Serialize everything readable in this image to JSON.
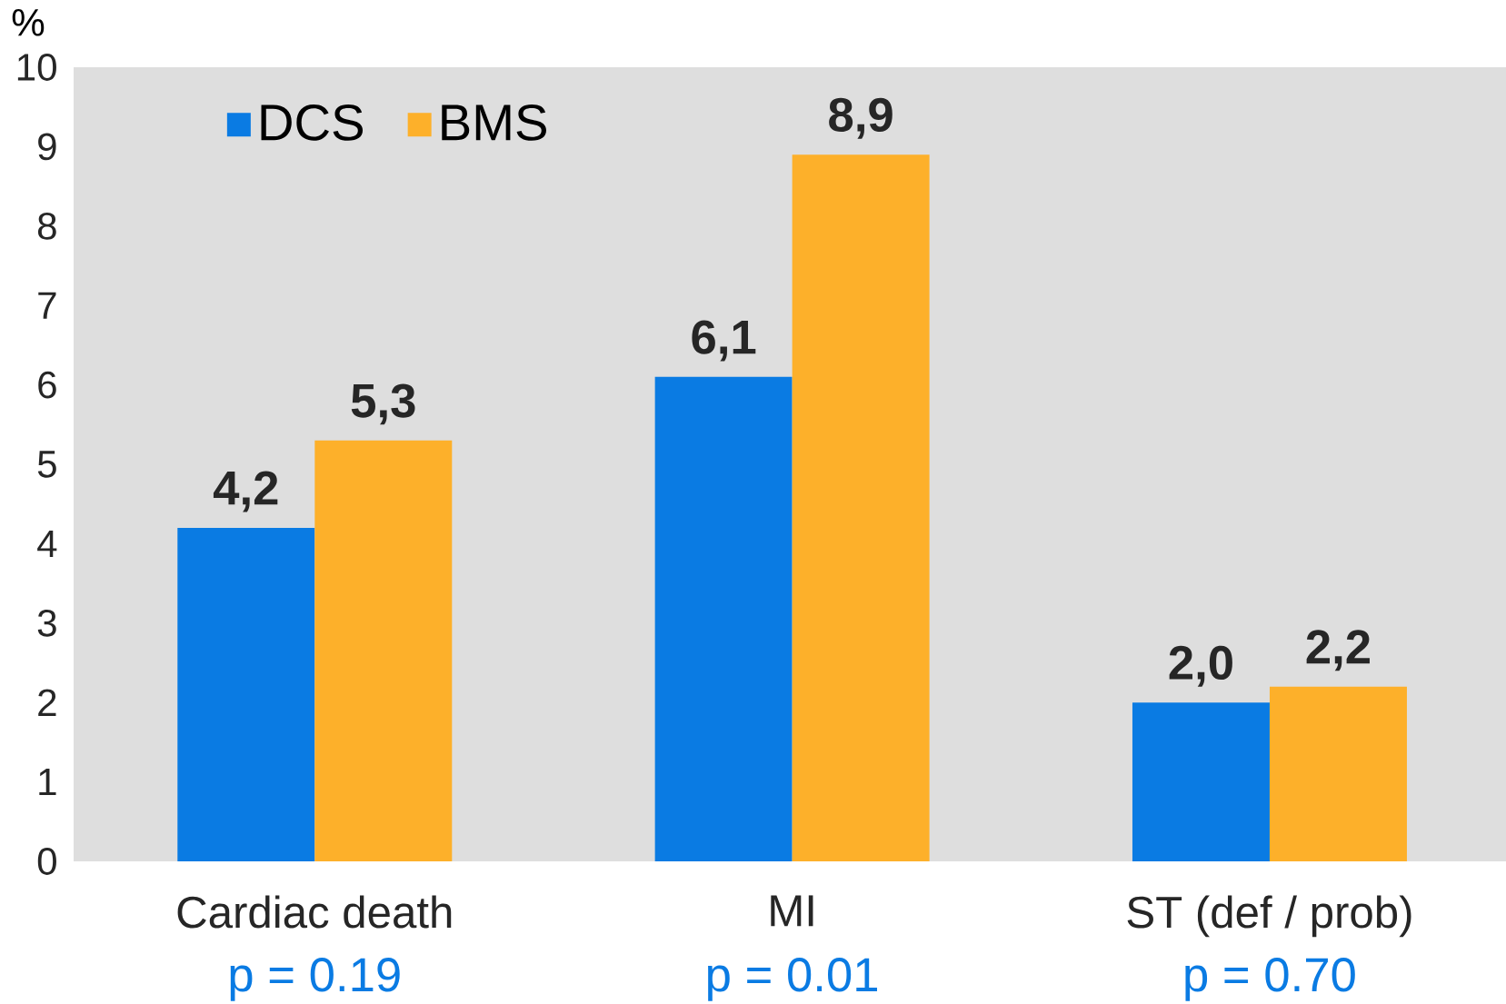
{
  "chart_data": {
    "type": "bar",
    "ylabel": "%",
    "categories": [
      "Cardiac death",
      "MI",
      "ST (def / prob)"
    ],
    "series": [
      {
        "name": "DCS",
        "color": "#0a7be3",
        "values": [
          4.2,
          6.1,
          2.0
        ],
        "value_labels": [
          "4,2",
          "6,1",
          "2,0"
        ]
      },
      {
        "name": "BMS",
        "color": "#fdb02a",
        "values": [
          5.3,
          8.9,
          2.2
        ],
        "value_labels": [
          "5,3",
          "8,9",
          "2,2"
        ]
      }
    ],
    "ylim": [
      0,
      10
    ],
    "yticks": [
      0,
      1,
      2,
      3,
      4,
      5,
      6,
      7,
      8,
      9,
      10
    ],
    "grid": false,
    "legend": "top left",
    "annotations": [
      "p = 0.19",
      "p = 0.01",
      "p = 0.70"
    ]
  }
}
